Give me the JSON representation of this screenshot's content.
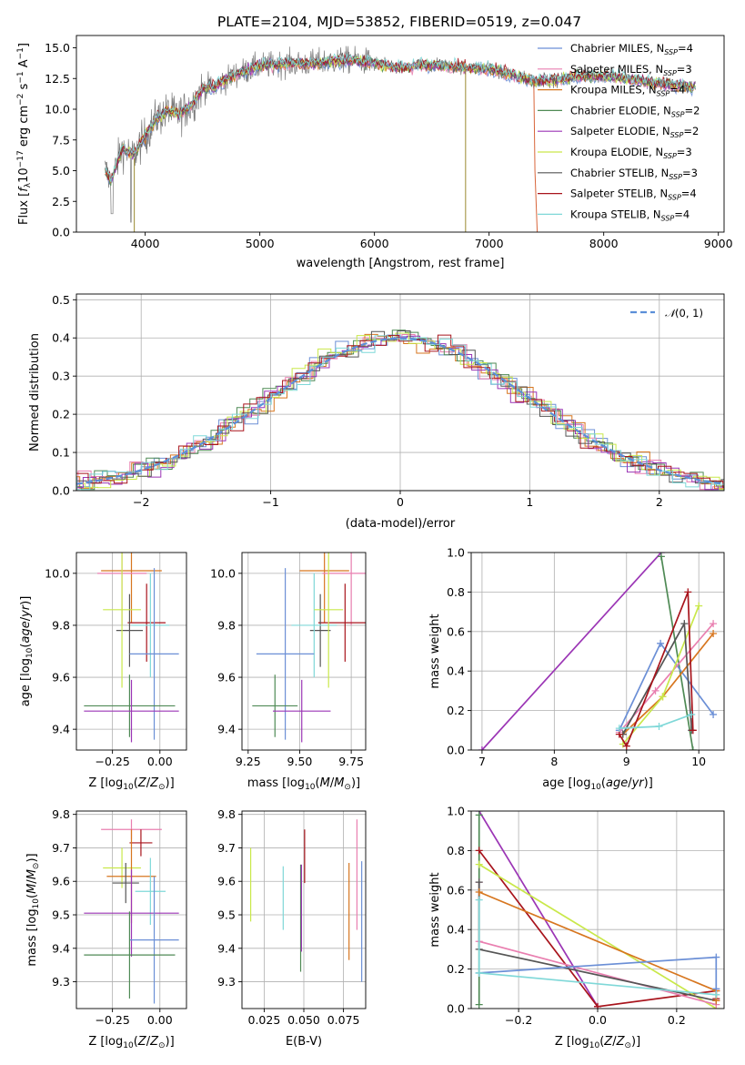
{
  "title": "PLATE=2104, MJD=53852, FIBERID=0519, z=0.047",
  "colors": {
    "chabrier_miles": "#6b8fd6",
    "salpeter_miles": "#e97fb0",
    "kroupa_miles": "#d7761f",
    "chabrier_elodie": "#4f8a55",
    "salpeter_elodie": "#9b35b5",
    "kroupa_elodie": "#c9e84a",
    "chabrier_stelib": "#555555",
    "salpeter_stelib": "#a8141c",
    "kroupa_stelib": "#7fd8d8",
    "normal_curve": "#5b8fd8",
    "grid": "#b0b0b0"
  },
  "chart_data": [
    {
      "id": "spectrum",
      "type": "line",
      "xlabel": "wavelength [Angstrom, rest frame]",
      "ylabel": "Flux [fλ10⁻¹⁷ erg cm⁻² s⁻¹ A⁻¹]",
      "xlim": [
        3400,
        9050
      ],
      "ylim": [
        0,
        16
      ],
      "xticks": [
        "4000",
        "5000",
        "6000",
        "7000",
        "8000",
        "9000"
      ],
      "yticks": [
        "0.0",
        "2.5",
        "5.0",
        "7.5",
        "10.0",
        "12.5",
        "15.0"
      ],
      "grid": false,
      "legend_position": "right",
      "observed_range": [
        3650,
        8800
      ],
      "model_continuum": {
        "x": [
          3650,
          3700,
          3800,
          3900,
          4000,
          4100,
          4200,
          4300,
          4400,
          4500,
          4600,
          4800,
          5000,
          5200,
          5400,
          5600,
          5800,
          6000,
          6200,
          6400,
          6600,
          6800,
          7000,
          7200,
          7400,
          7600,
          7800,
          8000,
          8200,
          8400,
          8600,
          8800
        ],
        "y": [
          5.0,
          4.2,
          6.8,
          6.3,
          7.8,
          9.3,
          9.8,
          9.6,
          10.3,
          11.7,
          11.8,
          12.9,
          13.5,
          13.7,
          13.7,
          13.9,
          14.0,
          13.8,
          13.3,
          13.6,
          13.5,
          13.4,
          13.3,
          12.8,
          12.3,
          12.4,
          12.7,
          12.7,
          12.5,
          12.2,
          12.0,
          11.8
        ]
      },
      "series": [
        {
          "name": "Chabrier MILES, N_SSP=4",
          "legend": "Chabrier MILES, N",
          "nssp": "=4",
          "color_key": "chabrier_miles"
        },
        {
          "name": "Salpeter MILES, N_SSP=3",
          "legend": "Salpeter MILES, N",
          "nssp": "=3",
          "color_key": "salpeter_miles"
        },
        {
          "name": "Kroupa MILES, N_SSP=4",
          "legend": "Kroupa MILES, N",
          "nssp": "=4",
          "color_key": "kroupa_miles"
        },
        {
          "name": "Chabrier ELODIE, N_SSP=2",
          "legend": "Chabrier ELODIE, N",
          "nssp": "=2",
          "color_key": "chabrier_elodie"
        },
        {
          "name": "Salpeter ELODIE, N_SSP=2",
          "legend": "Salpeter ELODIE, N",
          "nssp": "=2",
          "color_key": "salpeter_elodie"
        },
        {
          "name": "Kroupa ELODIE, N_SSP=3",
          "legend": "Kroupa ELODIE, N",
          "nssp": "=3",
          "color_key": "kroupa_elodie"
        },
        {
          "name": "Chabrier STELIB, N_SSP=3",
          "legend": "Chabrier STELIB, N",
          "nssp": "=3",
          "color_key": "chabrier_stelib"
        },
        {
          "name": "Salpeter STELIB, N_SSP=4",
          "legend": "Salpeter STELIB, N",
          "nssp": "=4",
          "color_key": "salpeter_stelib"
        },
        {
          "name": "Kroupa STELIB, N_SSP=4",
          "legend": "Kroupa STELIB, N",
          "nssp": "=4",
          "color_key": "kroupa_stelib"
        }
      ],
      "legend_sub": "SSP"
    },
    {
      "id": "residuals",
      "type": "line",
      "xlabel": "(data-model)/error",
      "ylabel": "Normed distribution",
      "xlim": [
        -2.5,
        2.5
      ],
      "ylim": [
        0,
        0.515
      ],
      "xticks": [
        -2,
        -1,
        0,
        1,
        2
      ],
      "xticklabels": [
        "−2",
        "−1",
        "0",
        "1",
        "2"
      ],
      "yticks": [
        0.0,
        0.1,
        0.2,
        0.3,
        0.4,
        0.5
      ],
      "yticklabels": [
        "0.0",
        "0.1",
        "0.2",
        "0.3",
        "0.4",
        "0.5"
      ],
      "grid": true,
      "legend_position": "top-right",
      "reference_curve": {
        "name": "N(0, 1)",
        "mean": 0,
        "sigma": 1
      },
      "bin_width": 0.1
    },
    {
      "id": "age_vs_Z",
      "type": "scatter",
      "xlabel": "Z [log10(Z/Z⊙)]",
      "ylabel": "age [log10(age/yr)]",
      "xlim": [
        -0.44,
        0.14
      ],
      "ylim": [
        9.32,
        10.08
      ],
      "xticks": [
        -0.25,
        0.0
      ],
      "xticklabels": [
        "−0.25",
        "0.00"
      ],
      "yticks": [
        9.4,
        9.6,
        9.8,
        10.0
      ],
      "yticklabels": [
        "9.4",
        "9.6",
        "9.8",
        "10.0"
      ],
      "grid": true,
      "points": [
        {
          "color_key": "kroupa_miles",
          "x": -0.15,
          "xerr": 0.16,
          "y": 10.01,
          "yerr": 0.2
        },
        {
          "color_key": "salpeter_miles",
          "x": -0.2,
          "xerr": 0.13,
          "y": 10.0,
          "yerr": 0.2
        },
        {
          "color_key": "salpeter_stelib",
          "x": -0.07,
          "xerr": 0.1,
          "y": 9.81,
          "yerr": 0.15
        },
        {
          "color_key": "chabrier_stelib",
          "x": -0.16,
          "xerr": 0.07,
          "y": 9.78,
          "yerr": 0.14
        },
        {
          "color_key": "kroupa_stelib",
          "x": -0.05,
          "xerr": 0.1,
          "y": 9.8,
          "yerr": 0.2
        },
        {
          "color_key": "kroupa_elodie",
          "x": -0.2,
          "xerr": 0.1,
          "y": 9.86,
          "yerr": 0.3
        },
        {
          "color_key": "chabrier_miles",
          "x": -0.03,
          "xerr": 0.13,
          "y": 9.69,
          "yerr": 0.33
        },
        {
          "color_key": "chabrier_elodie",
          "x": -0.16,
          "xerr": 0.24,
          "y": 9.49,
          "yerr": 0.12
        },
        {
          "color_key": "salpeter_elodie",
          "x": -0.15,
          "xerr": 0.25,
          "y": 9.47,
          "yerr": 0.12
        }
      ]
    },
    {
      "id": "age_vs_mass",
      "type": "scatter",
      "xlabel": "mass [log10(M/M⊙)]",
      "ylabel": "",
      "xlim": [
        9.22,
        9.82
      ],
      "ylim": [
        9.32,
        10.08
      ],
      "xticks": [
        9.25,
        9.5,
        9.75
      ],
      "xticklabels": [
        "9.25",
        "9.50",
        "9.75"
      ],
      "yticks": [
        9.4,
        9.6,
        9.8,
        10.0
      ],
      "yticklabels": [
        "9.4",
        "9.6",
        "9.8",
        "10.0"
      ],
      "grid": true,
      "points": [
        {
          "color_key": "kroupa_miles",
          "x": 9.62,
          "xerr": 0.12,
          "y": 10.01,
          "yerr": 0.2
        },
        {
          "color_key": "salpeter_miles",
          "x": 9.75,
          "xerr": 0.14,
          "y": 10.0,
          "yerr": 0.2
        },
        {
          "color_key": "salpeter_stelib",
          "x": 9.72,
          "xerr": 0.13,
          "y": 9.81,
          "yerr": 0.15
        },
        {
          "color_key": "chabrier_stelib",
          "x": 9.6,
          "xerr": 0.05,
          "y": 9.78,
          "yerr": 0.14
        },
        {
          "color_key": "kroupa_stelib",
          "x": 9.57,
          "xerr": 0.11,
          "y": 9.8,
          "yerr": 0.2
        },
        {
          "color_key": "kroupa_elodie",
          "x": 9.64,
          "xerr": 0.07,
          "y": 9.86,
          "yerr": 0.3
        },
        {
          "color_key": "chabrier_miles",
          "x": 9.43,
          "xerr": 0.14,
          "y": 9.69,
          "yerr": 0.33
        },
        {
          "color_key": "chabrier_elodie",
          "x": 9.38,
          "xerr": 0.11,
          "y": 9.49,
          "yerr": 0.12
        },
        {
          "color_key": "salpeter_elodie",
          "x": 9.51,
          "xerr": 0.14,
          "y": 9.47,
          "yerr": 0.12
        }
      ]
    },
    {
      "id": "weight_vs_age",
      "type": "line",
      "xlabel": "age [log10(age/yr)]",
      "ylabel": "mass weight",
      "xlim": [
        6.85,
        10.35
      ],
      "ylim": [
        0,
        1
      ],
      "xticks": [
        7,
        8,
        9,
        10
      ],
      "xticklabels": [
        "7",
        "8",
        "9",
        "10"
      ],
      "yticks": [
        0.0,
        0.2,
        0.4,
        0.6,
        0.8,
        1.0
      ],
      "yticklabels": [
        "0.0",
        "0.2",
        "0.4",
        "0.6",
        "0.8",
        "1.0"
      ],
      "grid": true,
      "series": [
        {
          "color_key": "salpeter_elodie",
          "x": [
            7.0,
            9.48
          ],
          "y": [
            0.0,
            1.0
          ]
        },
        {
          "color_key": "chabrier_elodie",
          "x": [
            9.48,
            9.92
          ],
          "y": [
            0.98,
            0.0
          ]
        },
        {
          "color_key": "chabrier_miles",
          "x": [
            8.9,
            9.47,
            10.2
          ],
          "y": [
            0.1,
            0.54,
            0.18
          ]
        },
        {
          "color_key": "salpeter_miles",
          "x": [
            8.9,
            9.4,
            10.2
          ],
          "y": [
            0.09,
            0.3,
            0.64
          ]
        },
        {
          "color_key": "kroupa_miles",
          "x": [
            8.95,
            9.5,
            10.2
          ],
          "y": [
            0.08,
            0.27,
            0.59
          ]
        },
        {
          "color_key": "kroupa_elodie",
          "x": [
            8.95,
            9.5,
            10.0
          ],
          "y": [
            0.03,
            0.27,
            0.73
          ]
        },
        {
          "color_key": "chabrier_stelib",
          "x": [
            8.95,
            9.8,
            9.9
          ],
          "y": [
            0.08,
            0.64,
            0.1
          ]
        },
        {
          "color_key": "salpeter_stelib",
          "x": [
            8.9,
            9.0,
            9.85,
            9.92
          ],
          "y": [
            0.08,
            0.02,
            0.8,
            0.1
          ]
        },
        {
          "color_key": "kroupa_stelib",
          "x": [
            8.9,
            9.45,
            9.9
          ],
          "y": [
            0.11,
            0.12,
            0.18
          ]
        }
      ]
    },
    {
      "id": "mass_vs_Z",
      "type": "scatter",
      "xlabel": "Z [log10(Z/Z⊙)]",
      "ylabel": "mass [log10(M/M⊙)]",
      "xlim": [
        -0.44,
        0.14
      ],
      "ylim": [
        9.22,
        9.81
      ],
      "xticks": [
        -0.25,
        0.0
      ],
      "xticklabels": [
        "−0.25",
        "0.00"
      ],
      "yticks": [
        9.3,
        9.4,
        9.5,
        9.6,
        9.7,
        9.8
      ],
      "yticklabels": [
        "9.3",
        "9.4",
        "9.5",
        "9.6",
        "9.7",
        "9.8"
      ],
      "grid": true,
      "points": [
        {
          "color_key": "salpeter_miles",
          "x": -0.15,
          "xerr": 0.16,
          "y": 9.755,
          "yerr": 0.03
        },
        {
          "color_key": "salpeter_stelib",
          "x": -0.1,
          "xerr": 0.06,
          "y": 9.715,
          "yerr": 0.04
        },
        {
          "color_key": "kroupa_elodie",
          "x": -0.2,
          "xerr": 0.1,
          "y": 9.64,
          "yerr": 0.06
        },
        {
          "color_key": "kroupa_miles",
          "x": -0.15,
          "xerr": 0.13,
          "y": 9.615,
          "yerr": 0.14
        },
        {
          "color_key": "chabrier_stelib",
          "x": -0.18,
          "xerr": 0.07,
          "y": 9.595,
          "yerr": 0.06
        },
        {
          "color_key": "kroupa_stelib",
          "x": -0.05,
          "xerr": 0.08,
          "y": 9.57,
          "yerr": 0.1
        },
        {
          "color_key": "salpeter_elodie",
          "x": -0.15,
          "xerr": 0.25,
          "y": 9.505,
          "yerr": 0.13
        },
        {
          "color_key": "chabrier_miles",
          "x": -0.03,
          "xerr": 0.13,
          "y": 9.425,
          "yerr": 0.19
        },
        {
          "color_key": "chabrier_elodie",
          "x": -0.16,
          "xerr": 0.24,
          "y": 9.38,
          "yerr": 0.13
        }
      ]
    },
    {
      "id": "mass_vs_EBV",
      "type": "scatter",
      "xlabel": "E(B-V)",
      "ylabel": "",
      "xlim": [
        0.011,
        0.089
      ],
      "ylim": [
        9.22,
        9.81
      ],
      "xticks": [
        0.025,
        0.05,
        0.075
      ],
      "xticklabels": [
        "0.025",
        "0.050",
        "0.075"
      ],
      "yticks": [
        9.3,
        9.4,
        9.5,
        9.6,
        9.7,
        9.8
      ],
      "yticklabels": [
        "9.3",
        "9.4",
        "9.5",
        "9.6",
        "9.7",
        "9.8"
      ],
      "grid": true,
      "points": [
        {
          "color_key": "kroupa_elodie",
          "x": 0.0165,
          "y": 9.59,
          "yerr": 0.11
        },
        {
          "color_key": "kroupa_stelib",
          "x": 0.037,
          "y": 9.55,
          "yerr": 0.095
        },
        {
          "color_key": "chabrier_elodie",
          "x": 0.048,
          "y": 9.49,
          "yerr": 0.16
        },
        {
          "color_key": "salpeter_elodie",
          "x": 0.0485,
          "y": 9.52,
          "yerr": 0.13
        },
        {
          "color_key": "salpeter_stelib",
          "x": 0.0505,
          "y": 9.675,
          "yerr": 0.08
        },
        {
          "color_key": "kroupa_miles",
          "x": 0.0785,
          "y": 9.51,
          "yerr": 0.145
        },
        {
          "color_key": "salpeter_miles",
          "x": 0.0835,
          "y": 9.62,
          "yerr": 0.165
        },
        {
          "color_key": "chabrier_miles",
          "x": 0.0865,
          "y": 9.48,
          "yerr": 0.18
        }
      ]
    },
    {
      "id": "weight_vs_Z",
      "type": "line",
      "xlabel": "Z [log10(Z/Z⊙)]",
      "ylabel": "mass weight",
      "xlim": [
        -0.32,
        0.32
      ],
      "ylim": [
        0,
        1
      ],
      "xticks": [
        -0.2,
        0.0,
        0.2
      ],
      "xticklabels": [
        "−0.2",
        "0.0",
        "0.2"
      ],
      "yticks": [
        0.0,
        0.2,
        0.4,
        0.6,
        0.8,
        1.0
      ],
      "yticklabels": [
        "0.0",
        "0.2",
        "0.4",
        "0.6",
        "0.8",
        "1.0"
      ],
      "grid": true,
      "series": [
        {
          "color_key": "salpeter_elodie",
          "x": [
            -0.3,
            0.0
          ],
          "y": [
            1.0,
            0.01
          ]
        },
        {
          "color_key": "chabrier_elodie",
          "x": [
            -0.3,
            -0.3
          ],
          "y": [
            0.98,
            0.02
          ]
        },
        {
          "color_key": "salpeter_stelib",
          "x": [
            -0.3,
            0.0,
            0.3,
            0.3
          ],
          "y": [
            0.8,
            0.01,
            0.09,
            0.05
          ]
        },
        {
          "color_key": "kroupa_elodie",
          "x": [
            -0.3,
            0.3
          ],
          "y": [
            0.73,
            0.0
          ]
        },
        {
          "color_key": "salpeter_miles",
          "x": [
            -0.3,
            -0.3,
            0.3
          ],
          "y": [
            0.64,
            0.34,
            0.02
          ]
        },
        {
          "color_key": "chabrier_stelib",
          "x": [
            -0.3,
            -0.3,
            0.3
          ],
          "y": [
            0.64,
            0.3,
            0.04
          ]
        },
        {
          "color_key": "kroupa_miles",
          "x": [
            -0.3,
            0.3,
            0.3
          ],
          "y": [
            0.59,
            0.09,
            0.04
          ]
        },
        {
          "color_key": "chabrier_miles",
          "x": [
            -0.3,
            0.3,
            0.3
          ],
          "y": [
            0.18,
            0.26,
            0.1
          ]
        },
        {
          "color_key": "kroupa_stelib",
          "x": [
            -0.3,
            -0.3,
            0.3
          ],
          "y": [
            0.55,
            0.18,
            0.07
          ]
        }
      ]
    }
  ]
}
